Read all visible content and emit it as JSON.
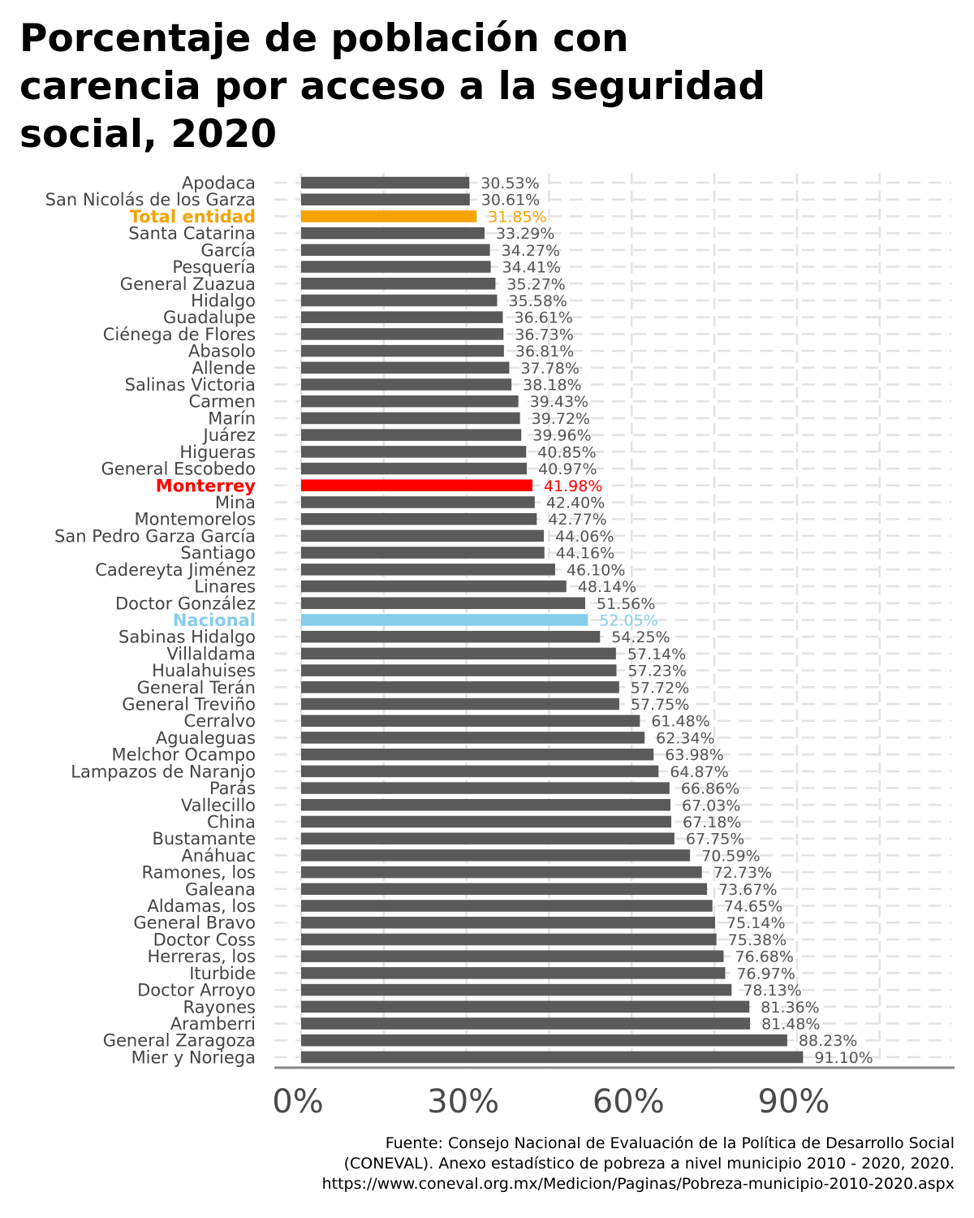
{
  "chart_data": {
    "type": "bar",
    "orientation": "horizontal",
    "title": "Porcentaje de población con carencia por acceso a la seguridad social, 2020",
    "title_lines": [
      "Porcentaje de población con",
      "carencia por acceso a la seguridad",
      "social, 2020"
    ],
    "xlabel": "",
    "ylabel": "",
    "xlim": [
      0,
      1.18
    ],
    "x_ticks": [
      0,
      0.3,
      0.6,
      0.9
    ],
    "x_tick_labels": [
      "0%",
      "30%",
      "60%",
      "90%"
    ],
    "grid": true,
    "legend": "none",
    "categories": [
      "Apodaca",
      "San Nicolás de los Garza",
      "Total entidad",
      "Santa Catarina",
      "García",
      "Pesquería",
      "General Zuazua",
      "Hidalgo",
      "Guadalupe",
      "Ciénega de Flores",
      "Abasolo",
      "Allende",
      "Salinas Victoria",
      "Carmen",
      "Marín",
      "Juárez",
      "Higueras",
      "General Escobedo",
      "Monterrey",
      "Mina",
      "Montemorelos",
      "San Pedro Garza García",
      "Santiago",
      "Cadereyta Jiménez",
      "Linares",
      "Doctor González",
      "Nacional",
      "Sabinas Hidalgo",
      "Villaldama",
      "Hualahuises",
      "General Terán",
      "General Treviño",
      "Cerralvo",
      "Agualeguas",
      "Melchor Ocampo",
      "Lampazos de Naranjo",
      "Parás",
      "Vallecillo",
      "China",
      "Bustamante",
      "Anáhuac",
      "Ramones, los",
      "Galeana",
      "Aldamas, los",
      "General Bravo",
      "Doctor Coss",
      "Herreras, los",
      "Iturbide",
      "Doctor Arroyo",
      "Rayones",
      "Aramberri",
      "General Zaragoza",
      "Mier y Noriega"
    ],
    "values": [
      30.53,
      30.61,
      31.85,
      33.29,
      34.27,
      34.41,
      35.27,
      35.58,
      36.61,
      36.73,
      36.81,
      37.78,
      38.18,
      39.43,
      39.72,
      39.96,
      40.85,
      40.97,
      41.98,
      42.4,
      42.77,
      44.06,
      44.16,
      46.1,
      48.14,
      51.56,
      52.05,
      54.25,
      57.14,
      57.23,
      57.72,
      57.75,
      61.48,
      62.34,
      63.98,
      64.87,
      66.86,
      67.03,
      67.18,
      67.75,
      70.59,
      72.73,
      73.67,
      74.65,
      75.14,
      75.38,
      76.68,
      76.97,
      78.13,
      81.36,
      81.48,
      88.23,
      91.1
    ],
    "value_labels": [
      "30.53%",
      "30.61%",
      "31.85%",
      "33.29%",
      "34.27%",
      "34.41%",
      "35.27%",
      "35.58%",
      "36.61%",
      "36.73%",
      "36.81%",
      "37.78%",
      "38.18%",
      "39.43%",
      "39.72%",
      "39.96%",
      "40.85%",
      "40.97%",
      "41.98%",
      "42.40%",
      "42.77%",
      "44.06%",
      "44.16%",
      "46.10%",
      "48.14%",
      "51.56%",
      "52.05%",
      "54.25%",
      "57.14%",
      "57.23%",
      "57.72%",
      "57.75%",
      "61.48%",
      "62.34%",
      "63.98%",
      "64.87%",
      "66.86%",
      "67.03%",
      "67.18%",
      "67.75%",
      "70.59%",
      "72.73%",
      "73.67%",
      "74.65%",
      "75.14%",
      "75.38%",
      "76.68%",
      "76.97%",
      "78.13%",
      "81.36%",
      "81.48%",
      "88.23%",
      "91.10%"
    ],
    "colors": {
      "default": "#5a5a5a",
      "Total entidad": "#f5a300",
      "Monterrey": "#ff0000",
      "Nacional": "#87cde9",
      "label_default": "#555555",
      "grid": "#e3e3e3",
      "axis": "#888888"
    },
    "source_lines": [
      "Fuente: Consejo Nacional de Evaluación de la Política de Desarrollo Social",
      "(CONEVAL). Anexo estadístico de pobreza a nivel municipio 2010 - 2020, 2020.",
      "https://www.coneval.org.mx/Medicion/Paginas/Pobreza-municipio-2010-2020.aspx"
    ]
  }
}
